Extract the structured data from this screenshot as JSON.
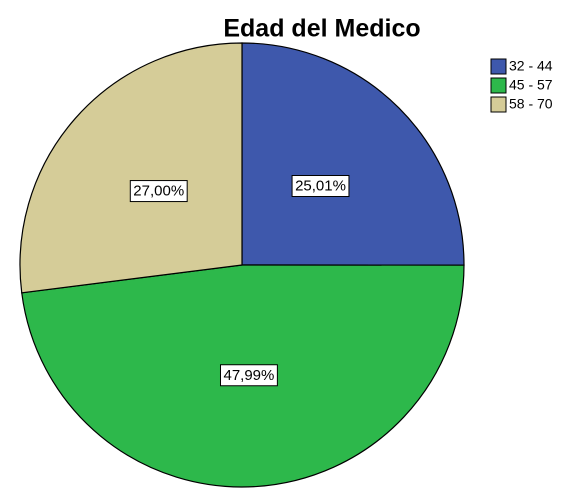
{
  "chart_data": {
    "type": "pie",
    "title": "Edad del Medico",
    "categories": [
      "32 - 44",
      "45 - 57",
      "58 - 70"
    ],
    "values": [
      25.01,
      47.99,
      27.0
    ],
    "value_labels": [
      "25,01%",
      "47,99%",
      "27,00%"
    ],
    "colors": [
      "#3e58ac",
      "#2db84b",
      "#d5cc98"
    ],
    "legend": "right"
  }
}
